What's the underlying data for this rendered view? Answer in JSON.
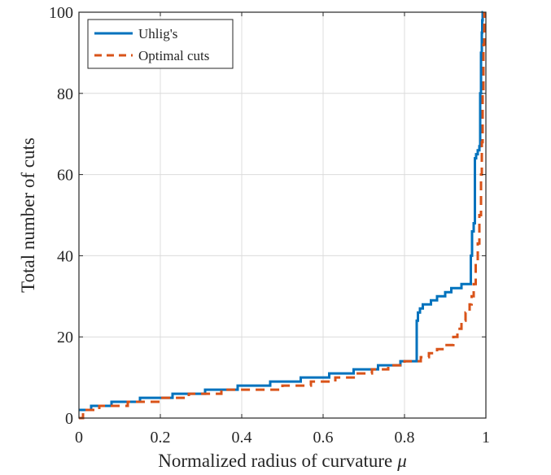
{
  "chart_data": {
    "type": "line",
    "title": "",
    "xlabel": "Normalized radius of curvature",
    "xlabel_symbol": "μ",
    "ylabel": "Total number of cuts",
    "xlim": [
      0,
      1
    ],
    "ylim": [
      0,
      100
    ],
    "xticks": [
      0,
      0.2,
      0.4,
      0.6,
      0.8,
      1
    ],
    "xtick_labels": [
      "0",
      "0.2",
      "0.4",
      "0.6",
      "0.8",
      "1"
    ],
    "yticks": [
      0,
      20,
      40,
      60,
      80,
      100
    ],
    "ytick_labels": [
      "0",
      "20",
      "40",
      "60",
      "80",
      "100"
    ],
    "grid": true,
    "legend_position": "top-left",
    "series": [
      {
        "name": "Uhlig's",
        "color": "#0072BD",
        "style": "solid",
        "x": [
          0,
          0.03,
          0.08,
          0.15,
          0.23,
          0.31,
          0.39,
          0.47,
          0.545,
          0.615,
          0.675,
          0.735,
          0.79,
          0.828,
          0.83,
          0.833,
          0.838,
          0.845,
          0.865,
          0.88,
          0.9,
          0.915,
          0.94,
          0.962,
          0.963,
          0.966,
          0.97,
          0.973,
          0.976,
          0.98,
          0.984,
          0.986,
          0.988,
          0.99,
          0.991,
          0.992,
          0.993
        ],
        "values": [
          2,
          3,
          4,
          5,
          6,
          7,
          8,
          9,
          10,
          11,
          12,
          13,
          14,
          14,
          24,
          26,
          27,
          28,
          29,
          30,
          31,
          32,
          33,
          33,
          40,
          46,
          48,
          64,
          65,
          66,
          67,
          80,
          90,
          95,
          98,
          100,
          100
        ]
      },
      {
        "name": "Optimal cuts",
        "color": "#D95319",
        "style": "dashed",
        "x": [
          0,
          0.01,
          0.05,
          0.12,
          0.2,
          0.27,
          0.35,
          0.42,
          0.5,
          0.57,
          0.63,
          0.68,
          0.72,
          0.76,
          0.8,
          0.84,
          0.86,
          0.88,
          0.9,
          0.92,
          0.93,
          0.94,
          0.95,
          0.96,
          0.965,
          0.97,
          0.975,
          0.98,
          0.984,
          0.988,
          0.99,
          0.992,
          0.994,
          0.996
        ],
        "values": [
          0,
          2,
          3,
          4,
          5,
          6,
          7,
          7,
          8,
          9,
          10,
          11,
          12,
          13,
          14,
          15,
          16,
          17,
          18,
          20,
          22,
          24,
          26,
          28,
          30,
          33,
          38,
          43,
          50,
          60,
          68,
          80,
          92,
          100
        ]
      }
    ]
  }
}
